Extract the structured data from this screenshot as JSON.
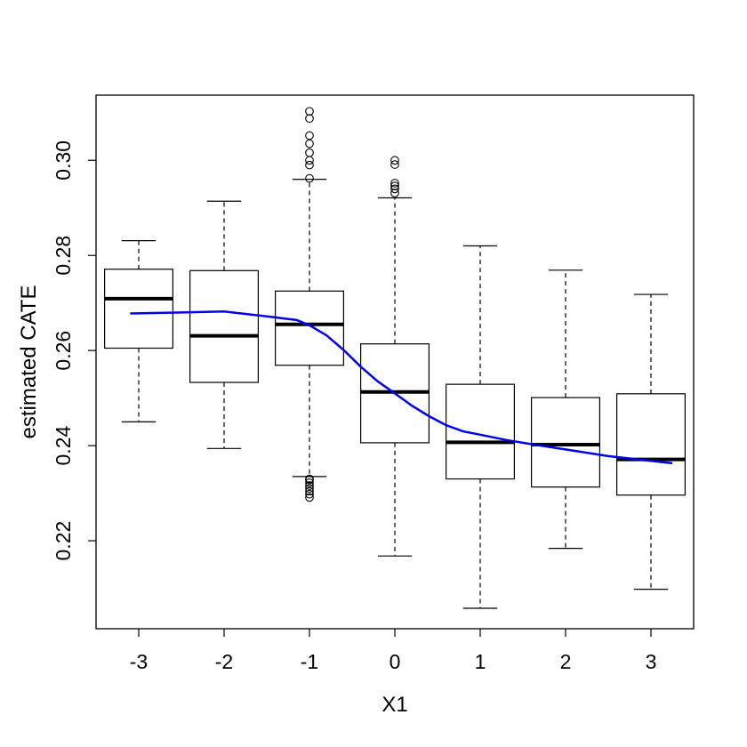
{
  "chart_data": {
    "type": "boxplot",
    "title": "",
    "xlabel": "X1",
    "ylabel": "estimated CATE",
    "xlim": [
      0.5,
      7.5
    ],
    "ylim": [
      0.2015,
      0.3137
    ],
    "y_ticks": [
      0.22,
      0.24,
      0.26,
      0.28,
      0.3
    ],
    "y_tick_labels": [
      "0.22",
      "0.24",
      "0.26",
      "0.28",
      "0.30"
    ],
    "categories": [
      "-3",
      "-2",
      "-1",
      "0",
      "1",
      "2",
      "3"
    ],
    "boxes": [
      {
        "label": "-3",
        "whisker_low": 0.245,
        "q1": 0.2605,
        "median": 0.2709,
        "q3": 0.2771,
        "whisker_high": 0.2831,
        "outliers": []
      },
      {
        "label": "-2",
        "whisker_low": 0.2394,
        "q1": 0.2533,
        "median": 0.2631,
        "q3": 0.2768,
        "whisker_high": 0.2914,
        "outliers": []
      },
      {
        "label": "-1",
        "whisker_low": 0.2335,
        "q1": 0.2569,
        "median": 0.2655,
        "q3": 0.2725,
        "whisker_high": 0.296,
        "outliers": [
          0.2291,
          0.2298,
          0.2304,
          0.231,
          0.2316,
          0.2322,
          0.2328,
          0.233,
          0.2962,
          0.299,
          0.3,
          0.3016,
          0.3035,
          0.3052,
          0.3088,
          0.3103
        ]
      },
      {
        "label": "0",
        "whisker_low": 0.2168,
        "q1": 0.2406,
        "median": 0.2513,
        "q3": 0.2614,
        "whisker_high": 0.2921,
        "outliers": [
          0.2931,
          0.294,
          0.2946,
          0.2952,
          0.2991,
          0.3
        ]
      },
      {
        "label": "1",
        "whisker_low": 0.2058,
        "q1": 0.233,
        "median": 0.2407,
        "q3": 0.2529,
        "whisker_high": 0.282,
        "outliers": []
      },
      {
        "label": "2",
        "whisker_low": 0.2184,
        "q1": 0.2313,
        "median": 0.2402,
        "q3": 0.2501,
        "whisker_high": 0.2769,
        "outliers": []
      },
      {
        "label": "3",
        "whisker_low": 0.2098,
        "q1": 0.2296,
        "median": 0.2371,
        "q3": 0.2509,
        "whisker_high": 0.2718,
        "outliers": []
      }
    ],
    "trend_line": {
      "color": "#0000ee",
      "points": [
        [
          0.9,
          0.2678
        ],
        [
          1.5,
          0.268
        ],
        [
          2.0,
          0.2682
        ],
        [
          2.5,
          0.2672
        ],
        [
          2.85,
          0.2664
        ],
        [
          3.0,
          0.2653
        ],
        [
          3.2,
          0.2632
        ],
        [
          3.4,
          0.2601
        ],
        [
          3.6,
          0.2566
        ],
        [
          3.8,
          0.2535
        ],
        [
          4.0,
          0.251
        ],
        [
          4.2,
          0.2484
        ],
        [
          4.4,
          0.2462
        ],
        [
          4.6,
          0.2443
        ],
        [
          4.8,
          0.243
        ],
        [
          5.0,
          0.2423
        ],
        [
          5.3,
          0.2412
        ],
        [
          5.6,
          0.2403
        ],
        [
          6.0,
          0.2392
        ],
        [
          6.5,
          0.2378
        ],
        [
          7.0,
          0.2368
        ],
        [
          7.25,
          0.2363
        ]
      ]
    },
    "grid": false,
    "legend": "none"
  }
}
